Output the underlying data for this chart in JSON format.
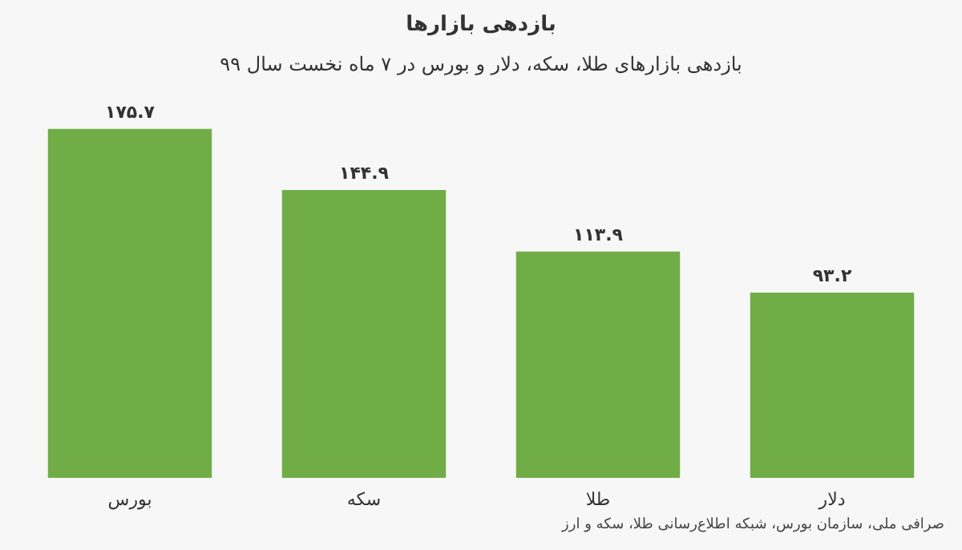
{
  "chart_data": {
    "type": "bar",
    "title": "بازدهی بازارها",
    "subtitle": "بازدهی بازارهای طلا، سکه، دلار و بورس در ۷ ماه نخست سال ۹۹",
    "categories": [
      "بورس",
      "سکه",
      "طلا",
      "دلار"
    ],
    "values": [
      175.7,
      144.9,
      113.9,
      93.2
    ],
    "value_labels": [
      "۱۷۵.۷",
      "۱۴۴.۹",
      "۱۱۳.۹",
      "۹۳.۲"
    ],
    "color": "#70ad47",
    "annotations": [
      "صرافی ملی، سازمان بورس، شبکه اطلاع‌رسانی طلا، سکه و ارز"
    ]
  }
}
